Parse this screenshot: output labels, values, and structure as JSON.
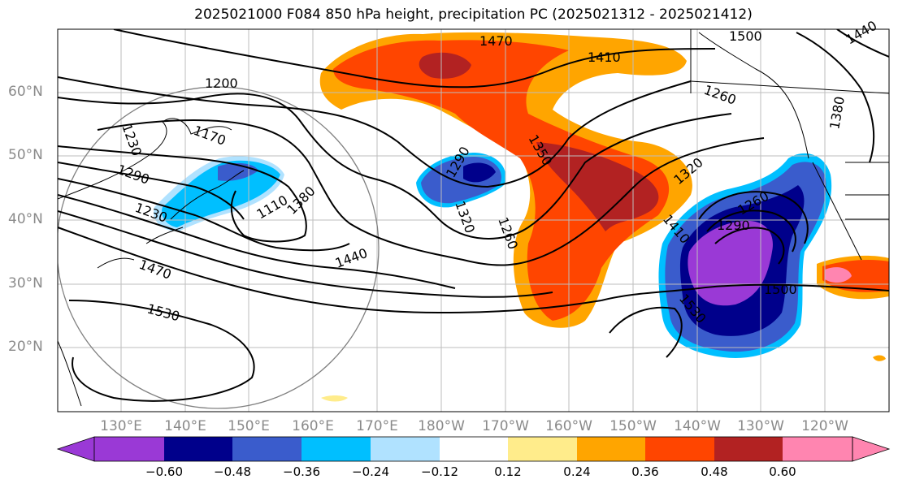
{
  "title": "2025021000 F084 850 hPa height, precipitation PC (2025021312 - 2025021412)",
  "lat_labels": [
    "60°N",
    "50°N",
    "40°N",
    "30°N",
    "20°N"
  ],
  "lon_labels": [
    "130°E",
    "140°E",
    "150°E",
    "160°E",
    "170°E",
    "180°W",
    "170°W",
    "160°W",
    "150°W",
    "140°W",
    "130°W",
    "120°W"
  ],
  "contour_labels": [
    "1470",
    "1500",
    "1410",
    "1440",
    "1260",
    "1200",
    "1230",
    "1170",
    "1290",
    "1350",
    "1380",
    "1320",
    "1290",
    "1320",
    "1260",
    "1110",
    "1410",
    "1290",
    "1260",
    "1230",
    "1470",
    "1440",
    "1500",
    "1530",
    "1530",
    "1380"
  ],
  "colorbar": {
    "ticks": [
      "−0.60",
      "−0.48",
      "−0.36",
      "−0.24",
      "−0.12",
      "0.12",
      "0.24",
      "0.36",
      "0.48",
      "0.60"
    ],
    "colors": [
      "#9a39d6",
      "#00008b",
      "#3a5ccc",
      "#00bfff",
      "#b0e2ff",
      "#ffffff",
      "#ffec8b",
      "#ffa500",
      "#ff4500",
      "#b22222",
      "#ff85b0"
    ]
  }
}
